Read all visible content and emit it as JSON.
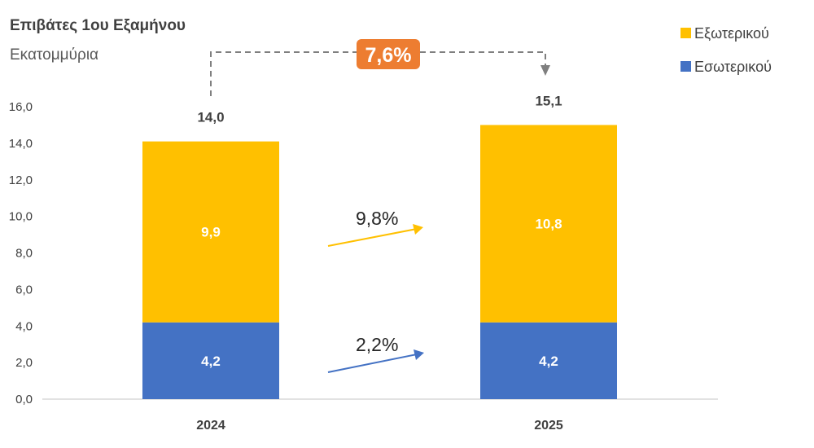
{
  "chart_data": {
    "type": "bar",
    "stacked": true,
    "title": "Επιβάτες 1ου Εξαμήνου",
    "subtitle": "Εκατομμύρια",
    "categories": [
      "2024",
      "2025"
    ],
    "series": [
      {
        "name": "Εσωτερικού",
        "values": [
          4.2,
          4.2
        ],
        "labels": [
          "4,2",
          "4,2"
        ],
        "color": "#4472C4"
      },
      {
        "name": "Εξωτερικού",
        "values": [
          9.9,
          10.8
        ],
        "labels": [
          "9,9",
          "10,8"
        ],
        "color": "#FFC000"
      }
    ],
    "totals": [
      14.0,
      15.1
    ],
    "total_labels": [
      "14,0",
      "15,1"
    ],
    "ylim": [
      0,
      16
    ],
    "yticks": [
      0,
      2,
      4,
      6,
      8,
      10,
      12,
      14,
      16
    ],
    "ytick_labels": [
      "0,0",
      "2,0",
      "4,0",
      "6,0",
      "8,0",
      "10,0",
      "12,0",
      "14,0",
      "16,0"
    ],
    "legend_position": "top-right",
    "grid": false,
    "annotations": {
      "total_growth": "7,6%",
      "total_growth_color": "#ED7D31",
      "foreign_growth": "9,8%",
      "domestic_growth": "2,2%"
    }
  }
}
